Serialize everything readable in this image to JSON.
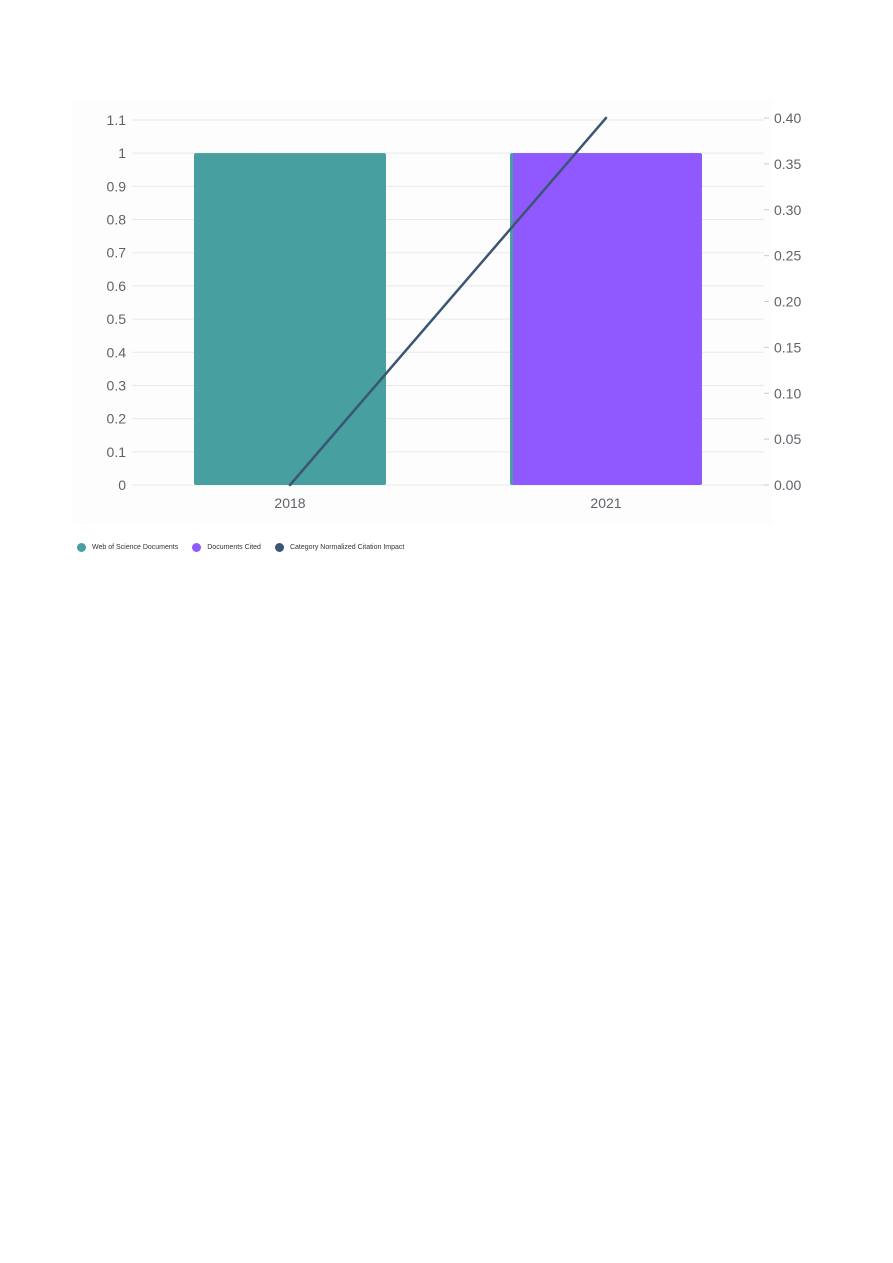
{
  "chart_data": {
    "type": "bar",
    "categories": [
      "2018",
      "2021"
    ],
    "series": [
      {
        "name": "Web of Science Documents",
        "type": "bar",
        "axis": "left",
        "color": "#479f9f",
        "values": [
          1,
          1
        ]
      },
      {
        "name": "Documents Cited",
        "type": "bar",
        "axis": "left",
        "color": "#8f59ff",
        "values": [
          0,
          1
        ]
      },
      {
        "name": "Category Normalized Citation Impact",
        "type": "line",
        "axis": "right",
        "color": "#3b5674",
        "values": [
          0.0,
          0.4
        ]
      }
    ],
    "y_left": {
      "ylim": [
        0,
        1.1
      ],
      "ticks": [
        "0",
        "0.1",
        "0.2",
        "0.3",
        "0.4",
        "0.5",
        "0.6",
        "0.7",
        "0.8",
        "0.9",
        "1",
        "1.1"
      ]
    },
    "y_right": {
      "ylim": [
        0,
        0.4
      ],
      "ticks": [
        "0.00",
        "0.05",
        "0.10",
        "0.15",
        "0.20",
        "0.25",
        "0.30",
        "0.35",
        "0.40"
      ]
    },
    "grid": true,
    "legend_position": "bottom-left"
  },
  "legend": {
    "items": [
      {
        "label": "Web of Science Documents",
        "color": "#479f9f"
      },
      {
        "label": "Documents Cited",
        "color": "#8f59ff"
      },
      {
        "label": "Category Normalized Citation Impact",
        "color": "#3b5674"
      }
    ]
  }
}
